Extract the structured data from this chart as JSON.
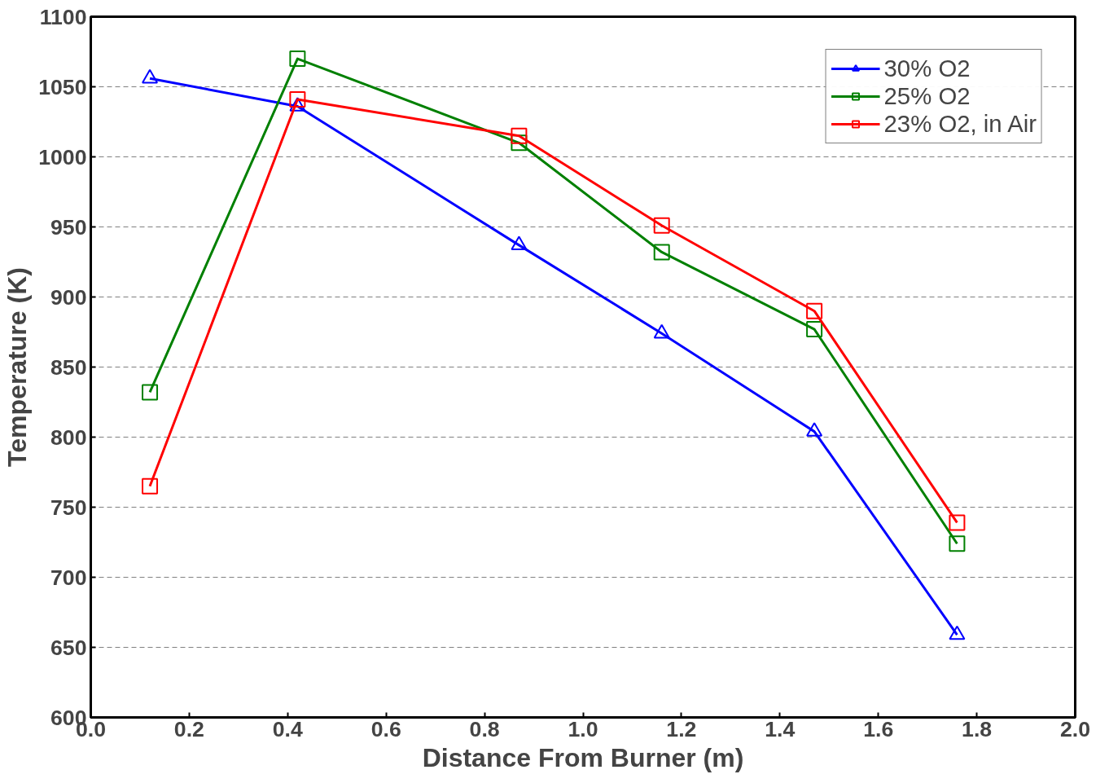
{
  "chart_data": {
    "type": "line",
    "xlabel": "Distance From Burner (m)",
    "ylabel": "Temperature (K)",
    "x": [
      0.12,
      0.42,
      0.87,
      1.16,
      1.47,
      1.76
    ],
    "series": [
      {
        "name": "30% O2",
        "color": "#0000ff",
        "marker": "triangle",
        "values": [
          1056,
          1036,
          937,
          874,
          804,
          659
        ]
      },
      {
        "name": "25% O2",
        "color": "#008000",
        "marker": "square",
        "values": [
          832,
          1070,
          1010,
          932,
          877,
          724
        ]
      },
      {
        "name": "23% O2, in Air",
        "color": "#ff0000",
        "marker": "square",
        "values": [
          765,
          1041,
          1015,
          951,
          890,
          739
        ]
      }
    ],
    "xlim": [
      0.0,
      2.0
    ],
    "xticks": [
      {
        "value": 0,
        "label": "0.0"
      },
      0.2,
      0.4,
      0.6,
      0.8,
      {
        "value": 1,
        "label": "1.0"
      },
      1.2,
      1.4,
      1.6,
      1.8,
      {
        "value": 2,
        "label": "2.0"
      }
    ],
    "ylim": [
      600,
      1100
    ],
    "yticks": [
      600,
      650,
      700,
      750,
      800,
      850,
      900,
      950,
      1000,
      1050,
      1100
    ],
    "grid": "y",
    "legend": "top right",
    "line_style": "solid"
  }
}
